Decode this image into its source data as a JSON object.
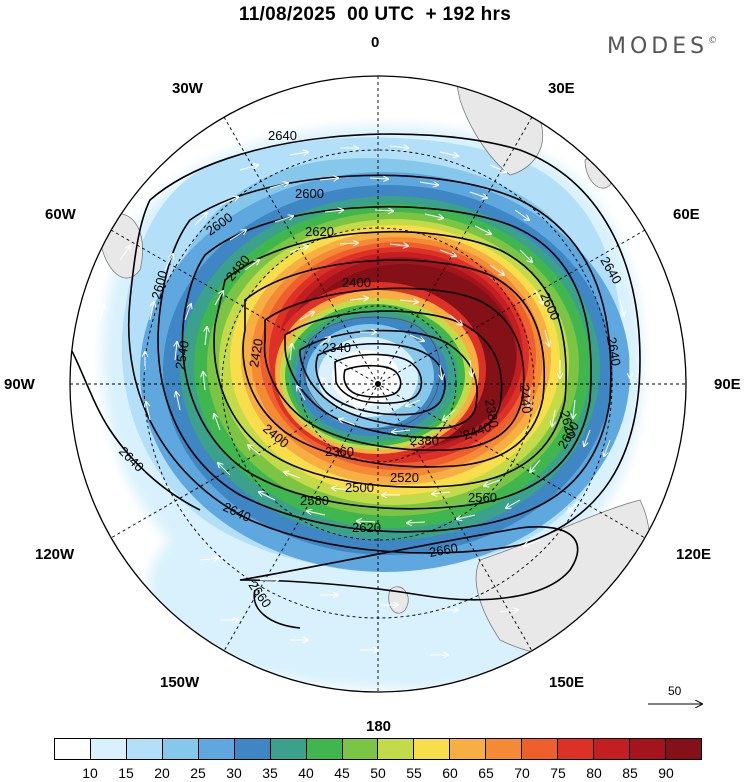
{
  "header": {
    "title": "11/08/2025  00 UTC  + 192 hrs",
    "logo": "MODES",
    "logo_mark": "©"
  },
  "map": {
    "projection": "south-polar-stereographic",
    "longitude_labels": {
      "top": "0",
      "bottom": "180",
      "left": "90W",
      "right": "90E",
      "upper_left_30": "30W",
      "upper_right_30": "30E",
      "upper_left_60": "60W",
      "upper_right_60": "60E",
      "lower_left_120": "120W",
      "lower_right_120": "120E",
      "lower_left_150": "150W",
      "lower_right_150": "150E"
    },
    "contour_labels": [
      "2640",
      "2640",
      "2600",
      "2600",
      "2620",
      "2600",
      "2600",
      "2480",
      "2400",
      "2420",
      "2440",
      "2340",
      "2540",
      "2360",
      "2440",
      "2620",
      "2640",
      "2380",
      "2400",
      "2500",
      "2560",
      "2580",
      "2520",
      "2620",
      "2660",
      "2660",
      "2640",
      "2640",
      "2600",
      "2380"
    ],
    "vector_scale": "50"
  },
  "colorbar": {
    "colors": [
      "#ffffff",
      "#d8f1fc",
      "#b3e0f8",
      "#86c7ec",
      "#5ea8df",
      "#3e86c4",
      "#3ba18a",
      "#3fb64e",
      "#7cc444",
      "#c3db49",
      "#f9de4b",
      "#f7ae42",
      "#f58a34",
      "#ee5f2d",
      "#dd3127",
      "#c31f23",
      "#a3141d",
      "#841018"
    ],
    "labels": [
      "10",
      "15",
      "20",
      "25",
      "30",
      "35",
      "40",
      "45",
      "50",
      "55",
      "60",
      "65",
      "70",
      "75",
      "80",
      "85",
      "90"
    ]
  }
}
